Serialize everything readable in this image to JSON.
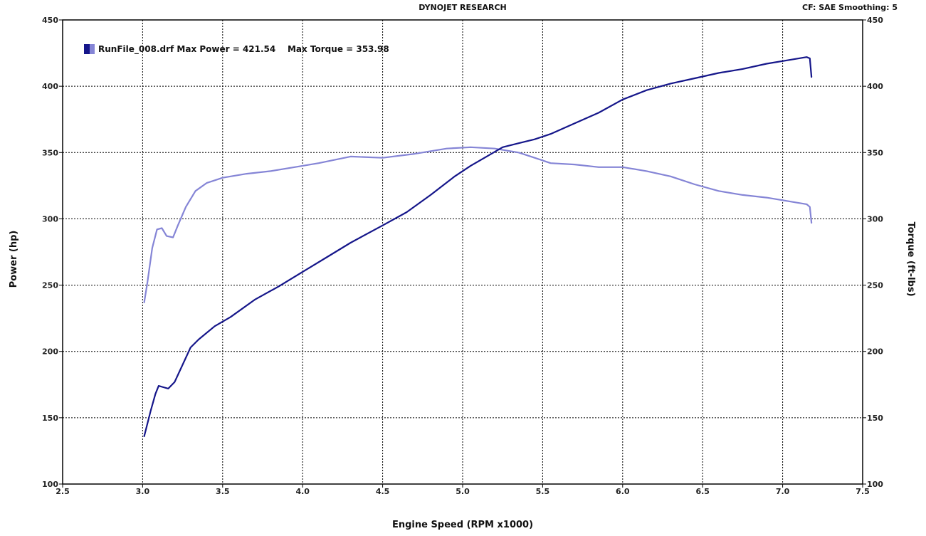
{
  "header": {
    "title": "DYNOJET RESEARCH",
    "info": "CF: SAE  Smoothing: 5"
  },
  "colors": {
    "power": "#15168a",
    "torque": "#8585d6",
    "grid": "#000000"
  },
  "chart_data": {
    "type": "line",
    "xlabel": "Engine Speed (RPM x1000)",
    "ylabel_left": "Power (hp)",
    "ylabel_right": "Torque (ft-lbs)",
    "xlim": [
      2.5,
      7.5
    ],
    "ylim": [
      100,
      450
    ],
    "x_ticks": [
      "2.5",
      "3.0",
      "3.5",
      "4.0",
      "4.5",
      "5.0",
      "5.5",
      "6.0",
      "6.5",
      "7.0",
      "7.5"
    ],
    "y_ticks": [
      "100",
      "150",
      "200",
      "250",
      "300",
      "350",
      "400",
      "450"
    ],
    "grid": true,
    "legend": {
      "position": "top-left",
      "entry": "RunFile_008.drf Max Power = 421.54    Max Torque = 353.98"
    },
    "series": [
      {
        "name": "Power",
        "x": [
          3.01,
          3.05,
          3.08,
          3.1,
          3.13,
          3.16,
          3.2,
          3.25,
          3.3,
          3.35,
          3.45,
          3.55,
          3.7,
          3.85,
          4.0,
          4.15,
          4.3,
          4.5,
          4.65,
          4.8,
          4.95,
          5.05,
          5.15,
          5.25,
          5.35,
          5.45,
          5.55,
          5.7,
          5.85,
          6.0,
          6.15,
          6.3,
          6.45,
          6.6,
          6.75,
          6.9,
          7.05,
          7.15,
          7.17,
          7.18
        ],
        "y": [
          136,
          155,
          168,
          174,
          173,
          172,
          177,
          190,
          203,
          209,
          219,
          226,
          239,
          249,
          260,
          271,
          282,
          295,
          305,
          318,
          332,
          340,
          347,
          354,
          357,
          360,
          364,
          372,
          380,
          390,
          397,
          402,
          406,
          410,
          413,
          417,
          420,
          422,
          421,
          407
        ]
      },
      {
        "name": "Torque",
        "x": [
          3.01,
          3.03,
          3.06,
          3.09,
          3.12,
          3.15,
          3.19,
          3.22,
          3.27,
          3.33,
          3.4,
          3.5,
          3.65,
          3.8,
          3.95,
          4.1,
          4.3,
          4.5,
          4.7,
          4.9,
          5.05,
          5.2,
          5.35,
          5.45,
          5.55,
          5.7,
          5.85,
          6.0,
          6.15,
          6.3,
          6.45,
          6.6,
          6.75,
          6.9,
          7.05,
          7.15,
          7.17,
          7.18
        ],
        "y": [
          237,
          252,
          278,
          292,
          293,
          287,
          286,
          295,
          309,
          321,
          327,
          331,
          334,
          336,
          339,
          342,
          347,
          346,
          349,
          353,
          354,
          353,
          350,
          346,
          342,
          341,
          339,
          339,
          336,
          332,
          326,
          321,
          318,
          316,
          313,
          311,
          309,
          297
        ]
      }
    ]
  }
}
